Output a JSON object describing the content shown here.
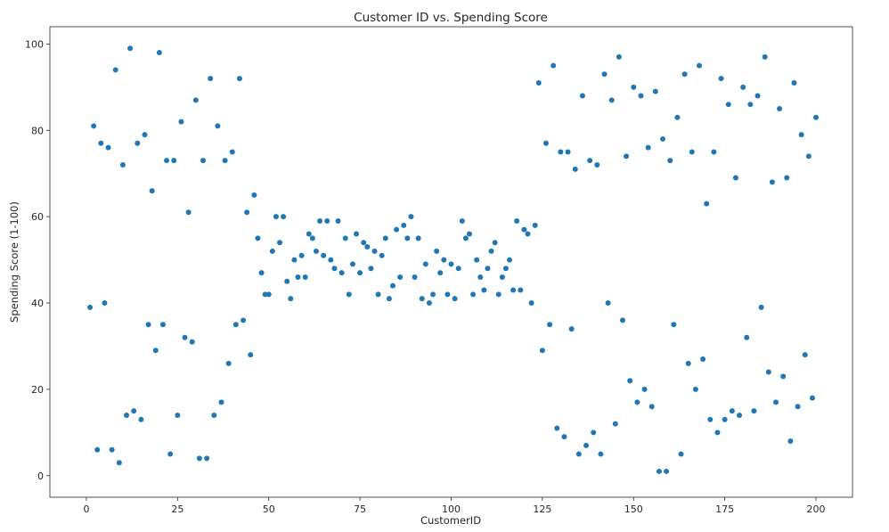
{
  "chart_data": {
    "type": "scatter",
    "title": "Customer ID vs. Spending Score",
    "xlabel": "CustomerID",
    "ylabel": "Spending Score (1-100)",
    "xlim": [
      -10,
      210
    ],
    "ylim": [
      -5,
      104
    ],
    "xticks": [
      0,
      25,
      50,
      75,
      100,
      125,
      150,
      175,
      200
    ],
    "yticks": [
      0,
      20,
      40,
      60,
      80,
      100
    ],
    "grid": false,
    "marker_color": "#1f77b4",
    "points": {
      "x": [
        1,
        2,
        3,
        4,
        5,
        6,
        7,
        8,
        9,
        10,
        11,
        12,
        13,
        14,
        15,
        16,
        17,
        18,
        19,
        20,
        21,
        22,
        23,
        24,
        25,
        26,
        27,
        28,
        29,
        30,
        31,
        32,
        33,
        34,
        35,
        36,
        37,
        38,
        39,
        40,
        41,
        42,
        43,
        44,
        45,
        46,
        47,
        48,
        49,
        50,
        51,
        52,
        53,
        54,
        55,
        56,
        57,
        58,
        59,
        60,
        61,
        62,
        63,
        64,
        65,
        66,
        67,
        68,
        69,
        70,
        71,
        72,
        73,
        74,
        75,
        76,
        77,
        78,
        79,
        80,
        81,
        82,
        83,
        84,
        85,
        86,
        87,
        88,
        89,
        90,
        91,
        92,
        93,
        94,
        95,
        96,
        97,
        98,
        99,
        100,
        101,
        102,
        103,
        104,
        105,
        106,
        107,
        108,
        109,
        110,
        111,
        112,
        113,
        114,
        115,
        116,
        117,
        118,
        119,
        120,
        121,
        122,
        123,
        124,
        125,
        126,
        127,
        128,
        129,
        130,
        131,
        132,
        133,
        134,
        135,
        136,
        137,
        138,
        139,
        140,
        141,
        142,
        143,
        144,
        145,
        146,
        147,
        148,
        149,
        150,
        151,
        152,
        153,
        154,
        155,
        156,
        157,
        158,
        159,
        160,
        161,
        162,
        163,
        164,
        165,
        166,
        167,
        168,
        169,
        170,
        171,
        172,
        173,
        174,
        175,
        176,
        177,
        178,
        179,
        180,
        181,
        182,
        183,
        184,
        185,
        186,
        187,
        188,
        189,
        190,
        191,
        192,
        193,
        194,
        195,
        196,
        197,
        198,
        199,
        200
      ],
      "y": [
        39,
        81,
        6,
        77,
        40,
        76,
        6,
        94,
        3,
        72,
        14,
        99,
        15,
        77,
        13,
        79,
        35,
        66,
        29,
        98,
        35,
        73,
        5,
        73,
        14,
        82,
        32,
        61,
        31,
        87,
        4,
        73,
        4,
        92,
        14,
        81,
        17,
        73,
        26,
        75,
        35,
        92,
        36,
        61,
        28,
        65,
        55,
        47,
        42,
        42,
        52,
        60,
        54,
        60,
        45,
        41,
        50,
        46,
        51,
        46,
        56,
        55,
        52,
        59,
        51,
        59,
        50,
        48,
        59,
        47,
        55,
        42,
        49,
        56,
        47,
        54,
        53,
        48,
        52,
        42,
        51,
        55,
        41,
        44,
        57,
        46,
        58,
        55,
        60,
        46,
        55,
        41,
        49,
        40,
        42,
        52,
        47,
        50,
        42,
        49,
        41,
        48,
        59,
        55,
        56,
        42,
        50,
        46,
        43,
        48,
        52,
        54,
        42,
        46,
        48,
        50,
        43,
        59,
        43,
        57,
        56,
        40,
        58,
        91,
        29,
        77,
        35,
        95,
        11,
        75,
        9,
        75,
        34,
        71,
        5,
        88,
        7,
        73,
        10,
        72,
        5,
        93,
        40,
        87,
        12,
        97,
        36,
        74,
        22,
        90,
        17,
        88,
        20,
        76,
        16,
        89,
        1,
        78,
        1,
        73,
        35,
        83,
        5,
        93,
        26,
        75,
        20,
        95,
        27,
        63,
        13,
        75,
        10,
        92,
        13,
        86,
        15,
        69,
        14,
        90,
        32,
        86,
        15,
        88,
        39,
        97,
        24,
        68,
        17,
        85,
        23,
        69,
        8,
        91,
        16,
        79,
        28,
        74,
        18,
        83
      ]
    }
  }
}
